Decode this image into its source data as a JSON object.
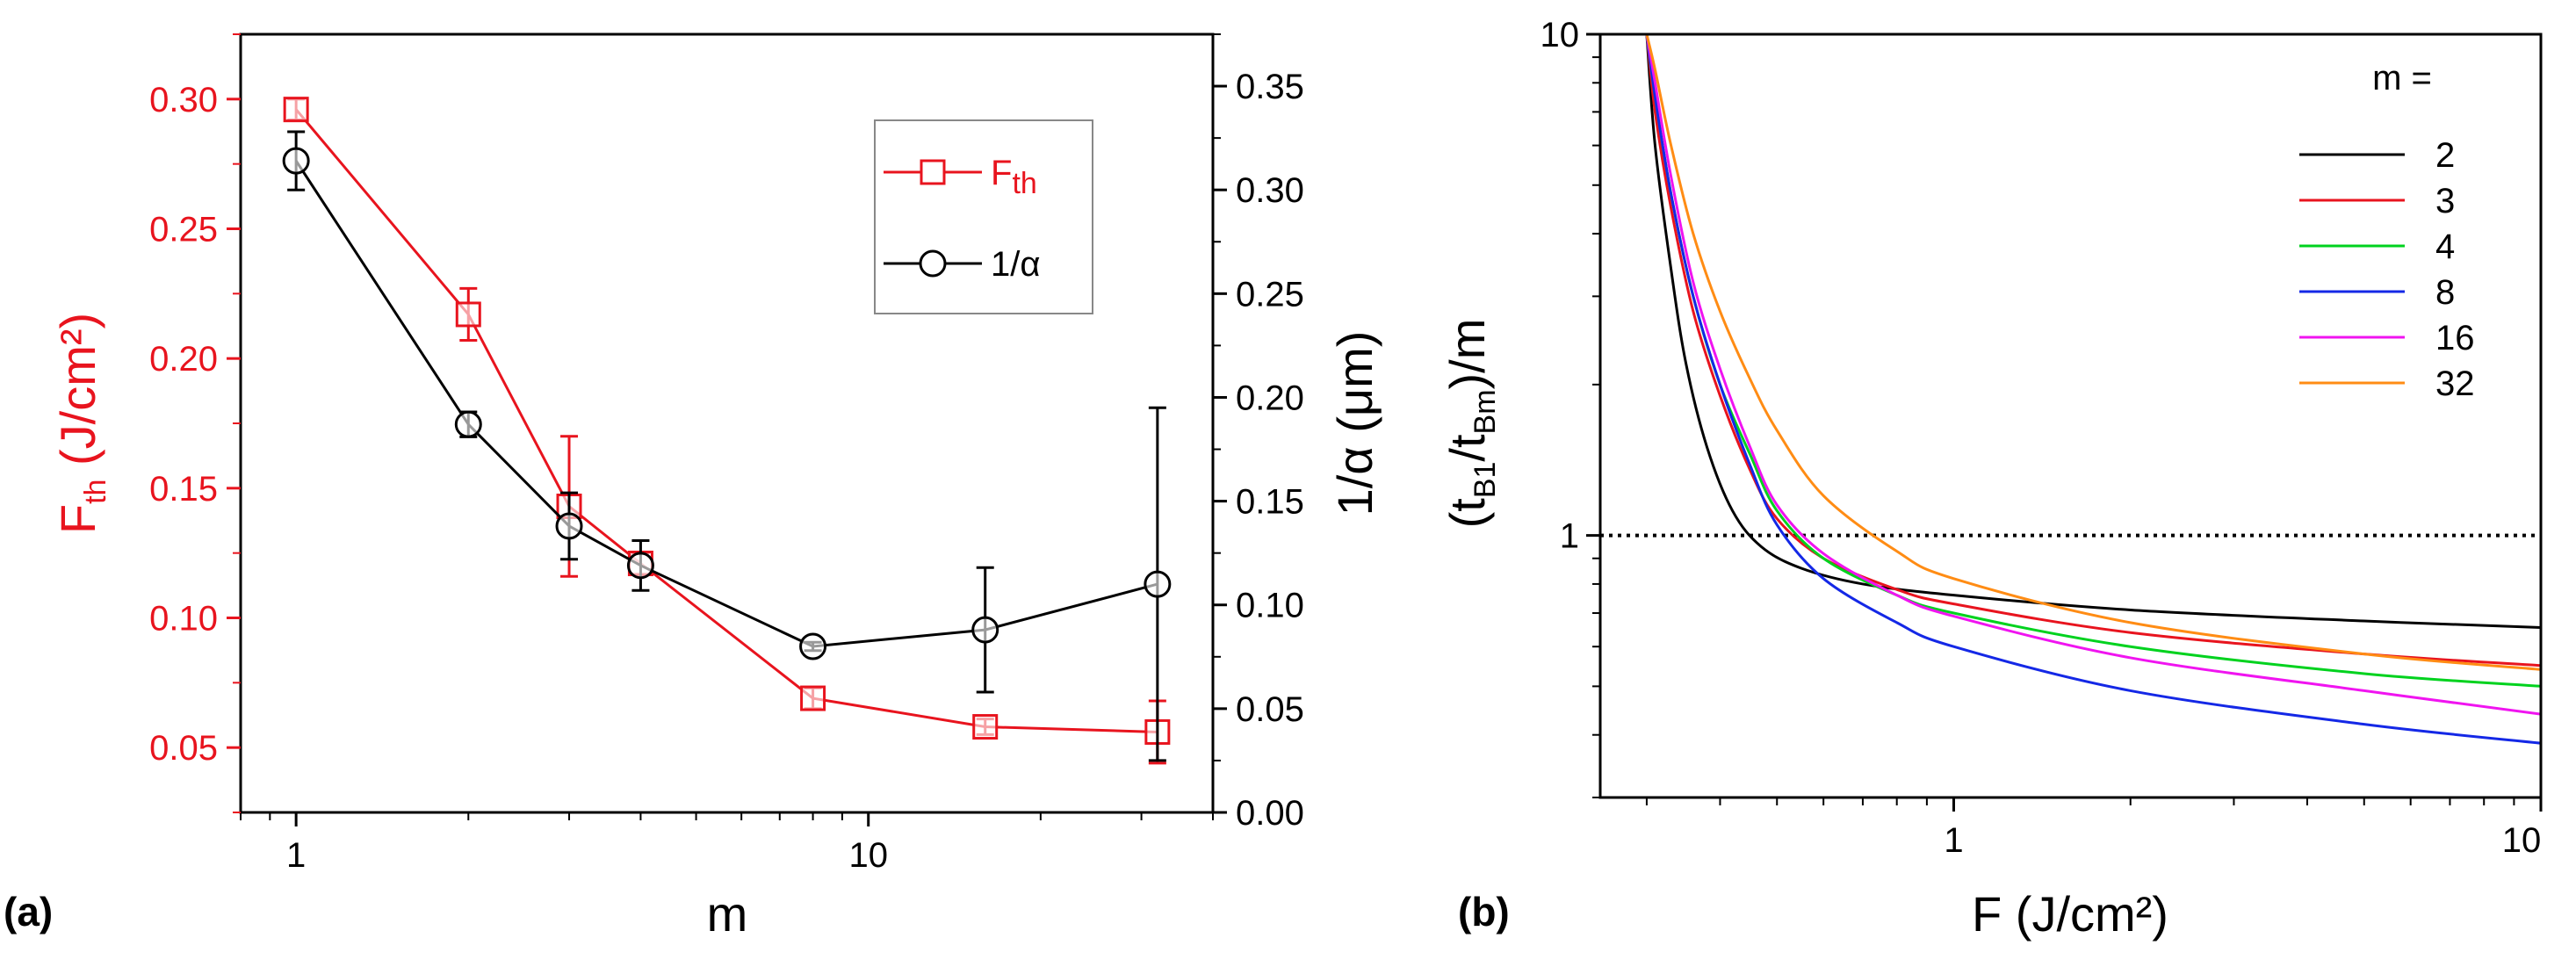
{
  "figure": {
    "panel_a_label": "(a)",
    "panel_b_label": "(b)"
  },
  "chart_data": [
    {
      "type": "line",
      "panel": "(a)",
      "title": "",
      "x_scale": "log",
      "xlim": [
        0.8,
        40
      ],
      "xlabel": "m",
      "x_ticks": [
        1,
        10
      ],
      "x_tick_labels": [
        "1",
        "10"
      ],
      "ylabel_left": {
        "main": "F",
        "sub": "th",
        "rest": " (J/cm²)"
      },
      "ylim_left": [
        0.025,
        0.325
      ],
      "y_ticks_left": [
        0.05,
        0.1,
        0.15,
        0.2,
        0.25,
        0.3
      ],
      "y_tick_labels_left": [
        "0.05",
        "0.10",
        "0.15",
        "0.20",
        "0.25",
        "0.30"
      ],
      "ylabel_right": "1/α (μm)",
      "ylim_right": [
        0.0,
        0.375
      ],
      "y_ticks_right": [
        0.0,
        0.05,
        0.1,
        0.15,
        0.2,
        0.25,
        0.3,
        0.35
      ],
      "y_tick_labels_right": [
        "0.00",
        "0.05",
        "0.10",
        "0.15",
        "0.20",
        "0.25",
        "0.30",
        "0.35"
      ],
      "legend_position": "top-right",
      "x": [
        1,
        2,
        3,
        4,
        8,
        16,
        32
      ],
      "series": [
        {
          "name": "F_th",
          "legend_main": "F",
          "legend_sub": "th",
          "axis": "left",
          "color": "#e8141e",
          "marker": "square",
          "values": [
            0.296,
            0.217,
            0.143,
            0.121,
            0.069,
            0.058,
            0.056
          ],
          "errors": [
            0.004,
            0.01,
            0.027,
            0.004,
            0.004,
            0.003,
            0.012
          ]
        },
        {
          "name": "1/α",
          "legend_main": "1/α",
          "legend_sub": "",
          "axis": "right",
          "color": "#000000",
          "marker": "circle",
          "values": [
            0.314,
            0.187,
            0.138,
            0.119,
            0.08,
            0.088,
            0.11
          ],
          "errors": [
            0.014,
            0.006,
            0.016,
            0.012,
            0.002,
            0.03,
            0.085
          ]
        }
      ]
    },
    {
      "type": "line",
      "panel": "(b)",
      "title": "",
      "x_scale": "log",
      "y_scale": "log",
      "xlim": [
        0.25,
        10
      ],
      "ylim": [
        0.3,
        10
      ],
      "xlabel": "F (J/cm²)",
      "ylabel": {
        "open": "(t",
        "sub1": "B1",
        "mid": "/t",
        "sub2": "Bm",
        "close": ")/m"
      },
      "x_ticks": [
        1,
        10
      ],
      "x_tick_labels": [
        "1",
        "10"
      ],
      "y_ticks": [
        1,
        10
      ],
      "y_tick_labels": [
        "1",
        "10"
      ],
      "legend_title": "m  =",
      "legend_position": "top-right",
      "reference_line": {
        "y": 1,
        "style": "dotted",
        "color": "#000000"
      },
      "series": [
        {
          "name": "2",
          "color": "#000000",
          "points": [
            [
              0.3,
              10
            ],
            [
              0.31,
              6
            ],
            [
              0.33,
              3.4
            ],
            [
              0.35,
              2.2
            ],
            [
              0.38,
              1.5
            ],
            [
              0.42,
              1.12
            ],
            [
              0.47,
              0.95
            ],
            [
              0.55,
              0.86
            ],
            [
              0.7,
              0.8
            ],
            [
              1,
              0.76
            ],
            [
              2,
              0.71
            ],
            [
              5,
              0.675
            ],
            [
              10,
              0.655
            ]
          ]
        },
        {
          "name": "3",
          "color": "#e8141e",
          "points": [
            [
              0.3,
              10
            ],
            [
              0.31,
              7
            ],
            [
              0.33,
              4.5
            ],
            [
              0.36,
              2.8
            ],
            [
              0.4,
              1.9
            ],
            [
              0.45,
              1.35
            ],
            [
              0.5,
              1.08
            ],
            [
              0.6,
              0.9
            ],
            [
              0.8,
              0.78
            ],
            [
              1,
              0.73
            ],
            [
              2,
              0.64
            ],
            [
              5,
              0.58
            ],
            [
              10,
              0.55
            ]
          ]
        },
        {
          "name": "4",
          "color": "#00d21e",
          "points": [
            [
              0.3,
              10
            ],
            [
              0.31,
              7.5
            ],
            [
              0.33,
              4.8
            ],
            [
              0.36,
              3.0
            ],
            [
              0.4,
              2.0
            ],
            [
              0.45,
              1.45
            ],
            [
              0.5,
              1.12
            ],
            [
              0.6,
              0.9
            ],
            [
              0.8,
              0.76
            ],
            [
              1,
              0.7
            ],
            [
              2,
              0.6
            ],
            [
              5,
              0.53
            ],
            [
              10,
              0.5
            ]
          ]
        },
        {
          "name": "8",
          "color": "#1428e6",
          "points": [
            [
              0.3,
              10
            ],
            [
              0.31,
              7.5
            ],
            [
              0.33,
              4.8
            ],
            [
              0.36,
              3.0
            ],
            [
              0.4,
              2.0
            ],
            [
              0.45,
              1.38
            ],
            [
              0.5,
              1.05
            ],
            [
              0.6,
              0.82
            ],
            [
              0.8,
              0.67
            ],
            [
              1,
              0.6
            ],
            [
              2,
              0.49
            ],
            [
              5,
              0.42
            ],
            [
              10,
              0.385
            ]
          ]
        },
        {
          "name": "16",
          "color": "#f014f0",
          "points": [
            [
              0.3,
              10
            ],
            [
              0.31,
              8
            ],
            [
              0.33,
              5.2
            ],
            [
              0.36,
              3.2
            ],
            [
              0.4,
              2.15
            ],
            [
              0.45,
              1.5
            ],
            [
              0.5,
              1.15
            ],
            [
              0.6,
              0.92
            ],
            [
              0.8,
              0.76
            ],
            [
              1,
              0.69
            ],
            [
              2,
              0.57
            ],
            [
              5,
              0.49
            ],
            [
              10,
              0.44
            ]
          ]
        },
        {
          "name": "32",
          "color": "#ff8c14",
          "points": [
            [
              0.3,
              10
            ],
            [
              0.31,
              8.5
            ],
            [
              0.33,
              6.0
            ],
            [
              0.36,
              4.0
            ],
            [
              0.4,
              2.8
            ],
            [
              0.45,
              2.05
            ],
            [
              0.5,
              1.62
            ],
            [
              0.6,
              1.2
            ],
            [
              0.8,
              0.93
            ],
            [
              1,
              0.82
            ],
            [
              2,
              0.67
            ],
            [
              5,
              0.58
            ],
            [
              10,
              0.54
            ]
          ]
        }
      ]
    }
  ]
}
